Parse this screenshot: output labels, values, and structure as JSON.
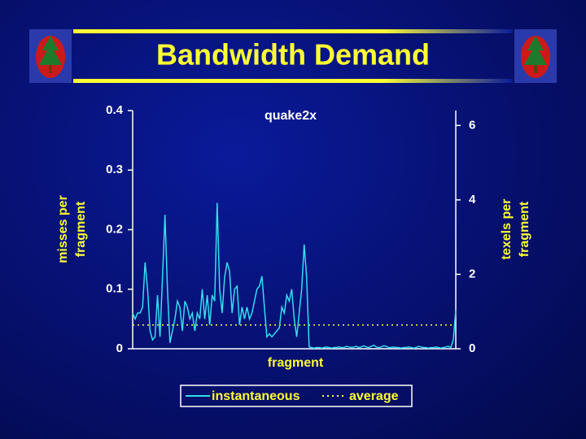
{
  "title": "Bandwidth Demand",
  "chart_data": {
    "type": "line",
    "title": "quake2x",
    "x_label": "fragment",
    "y_label": "misses per fragment",
    "y2_label": "texels per fragment",
    "ylim": [
      0,
      0.4
    ],
    "yticks": [
      0,
      0.1,
      0.2,
      0.3,
      0.4
    ],
    "y2lim": [
      0,
      6.4
    ],
    "y2ticks": [
      0,
      2,
      4,
      6
    ],
    "series": [
      {
        "name": "instantaneous",
        "color": "#33ddee",
        "values": [
          0.06,
          0.05,
          0.06,
          0.06,
          0.07,
          0.145,
          0.1,
          0.03,
          0.015,
          0.02,
          0.09,
          0.02,
          0.12,
          0.225,
          0.1,
          0.01,
          0.03,
          0.05,
          0.08,
          0.07,
          0.03,
          0.08,
          0.07,
          0.05,
          0.06,
          0.03,
          0.06,
          0.05,
          0.1,
          0.05,
          0.09,
          0.04,
          0.09,
          0.08,
          0.245,
          0.1,
          0.06,
          0.12,
          0.145,
          0.13,
          0.06,
          0.1,
          0.105,
          0.04,
          0.07,
          0.05,
          0.07,
          0.05,
          0.06,
          0.08,
          0.1,
          0.105,
          0.122,
          0.07,
          0.02,
          0.025,
          0.02,
          0.025,
          0.03,
          0.035,
          0.07,
          0.06,
          0.09,
          0.08,
          0.1,
          0.05,
          0.02,
          0.06,
          0.1,
          0.175,
          0.12,
          0.003,
          0.002,
          0.001,
          0.002,
          0.002,
          0.001,
          0.002,
          0.003,
          0.002,
          0.001,
          0.002,
          0.002,
          0.003,
          0.002,
          0.002,
          0.004,
          0.003,
          0.002,
          0.003,
          0.004,
          0.002,
          0.003,
          0.005,
          0.003,
          0.002,
          0.004,
          0.006,
          0.003,
          0.002,
          0.003,
          0.005,
          0.004,
          0.002,
          0.002,
          0.003,
          0.002,
          0.002,
          0.001,
          0.002,
          0.002,
          0.003,
          0.002,
          0.001,
          0.002,
          0.004,
          0.003,
          0.002,
          0.002,
          0.001,
          0.002,
          0.002,
          0.003,
          0.002,
          0.001,
          0.002,
          0.003,
          0.004,
          0.002,
          0.015,
          0.065
        ]
      }
    ],
    "average": {
      "name": "average",
      "color": "#ffff33",
      "value": 0.04
    }
  }
}
